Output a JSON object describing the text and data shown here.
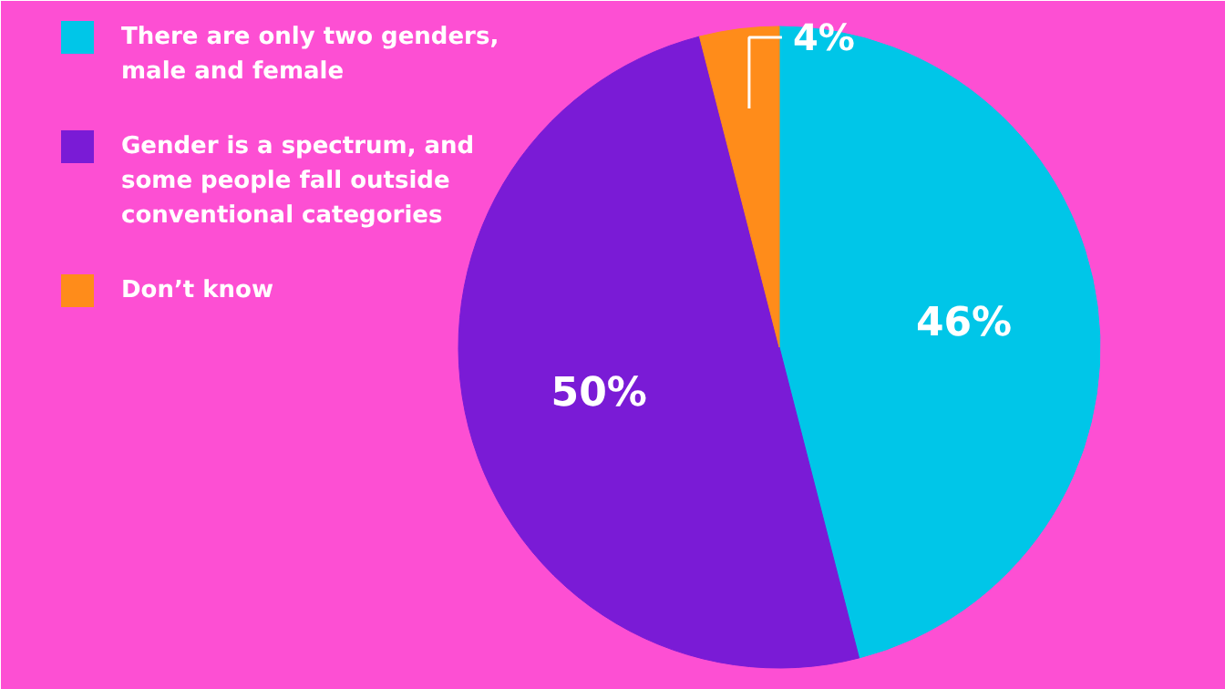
{
  "chart_data": {
    "type": "pie",
    "categories": [
      "There are only two genders, male and female",
      "Gender is a spectrum, and some people fall outside conventional categories",
      "Don’t know"
    ],
    "values": [
      46,
      50,
      4
    ],
    "colors": [
      "#00c6e8",
      "#7a1bd6",
      "#ff8c1a"
    ],
    "value_labels": [
      "46%",
      "50%",
      "4%"
    ],
    "legend": "top left"
  }
}
